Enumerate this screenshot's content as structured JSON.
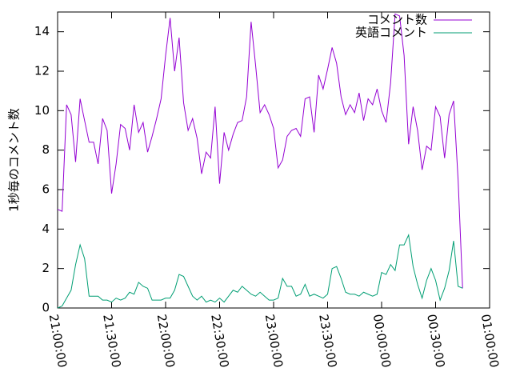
{
  "chart_data": {
    "type": "line",
    "ylabel": "1秒毎のコメント数",
    "x": [
      "21:00:00",
      "21:02:30",
      "21:05:00",
      "21:07:30",
      "21:10:00",
      "21:12:30",
      "21:15:00",
      "21:17:30",
      "21:20:00",
      "21:22:30",
      "21:25:00",
      "21:27:30",
      "21:30:00",
      "21:32:30",
      "21:35:00",
      "21:37:30",
      "21:40:00",
      "21:42:30",
      "21:45:00",
      "21:47:30",
      "21:50:00",
      "21:52:30",
      "21:55:00",
      "21:57:30",
      "22:00:00",
      "22:02:30",
      "22:05:00",
      "22:07:30",
      "22:10:00",
      "22:12:30",
      "22:15:00",
      "22:17:30",
      "22:20:00",
      "22:22:30",
      "22:25:00",
      "22:27:30",
      "22:30:00",
      "22:32:30",
      "22:35:00",
      "22:37:30",
      "22:40:00",
      "22:42:30",
      "22:45:00",
      "22:47:30",
      "22:50:00",
      "22:52:30",
      "22:55:00",
      "22:57:30",
      "23:00:00",
      "23:02:30",
      "23:05:00",
      "23:07:30",
      "23:10:00",
      "23:12:30",
      "23:15:00",
      "23:17:30",
      "23:20:00",
      "23:22:30",
      "23:25:00",
      "23:27:30",
      "23:30:00",
      "23:32:30",
      "23:35:00",
      "23:37:30",
      "23:40:00",
      "23:42:30",
      "23:45:00",
      "23:47:30",
      "23:50:00",
      "23:52:30",
      "23:55:00",
      "23:57:30",
      "00:00:00",
      "00:02:30",
      "00:05:00",
      "00:07:30",
      "00:10:00",
      "00:12:30",
      "00:15:00",
      "00:17:30",
      "00:20:00",
      "00:22:30",
      "00:25:00",
      "00:27:30",
      "00:30:00",
      "00:32:30",
      "00:35:00",
      "00:37:30",
      "00:40:00",
      "00:42:30",
      "00:45:00"
    ],
    "series": [
      {
        "name": "コメント数",
        "color": "#9400d3",
        "values": [
          5.0,
          4.9,
          10.3,
          9.8,
          7.4,
          10.6,
          9.5,
          8.4,
          8.4,
          7.3,
          9.6,
          9.0,
          5.8,
          7.3,
          9.3,
          9.1,
          8.0,
          10.3,
          8.9,
          9.4,
          7.9,
          8.7,
          9.6,
          10.6,
          12.8,
          14.7,
          12.0,
          13.7,
          10.4,
          9.0,
          9.6,
          8.6,
          6.8,
          7.9,
          7.6,
          10.2,
          6.3,
          8.9,
          8.0,
          8.8,
          9.4,
          9.5,
          10.7,
          14.5,
          12.3,
          9.9,
          10.3,
          9.8,
          9.1,
          7.1,
          7.5,
          8.7,
          9.0,
          9.1,
          8.7,
          10.6,
          10.7,
          8.9,
          11.8,
          11.1,
          12.1,
          13.2,
          12.4,
          10.7,
          9.8,
          10.3,
          9.9,
          10.9,
          9.5,
          10.6,
          10.3,
          11.1,
          10.0,
          9.4,
          11.4,
          14.9,
          14.8,
          12.8,
          8.3,
          10.2,
          9.0,
          7.0,
          8.2,
          8.0,
          10.2,
          9.7,
          7.6,
          9.8,
          10.5,
          6.5,
          1.0
        ]
      },
      {
        "name": "英語コメント",
        "color": "#009e73",
        "values": [
          0,
          0.1,
          0.5,
          0.9,
          2.2,
          3.2,
          2.5,
          0.6,
          0.6,
          0.6,
          0.4,
          0.4,
          0.3,
          0.5,
          0.4,
          0.5,
          0.8,
          0.7,
          1.3,
          1.1,
          1.0,
          0.4,
          0.4,
          0.4,
          0.5,
          0.5,
          0.9,
          1.7,
          1.6,
          1.1,
          0.6,
          0.4,
          0.6,
          0.3,
          0.4,
          0.3,
          0.5,
          0.3,
          0.6,
          0.9,
          0.8,
          1.1,
          0.9,
          0.7,
          0.6,
          0.8,
          0.6,
          0.4,
          0.4,
          0.5,
          1.5,
          1.1,
          1.1,
          0.6,
          0.7,
          1.2,
          0.6,
          0.7,
          0.6,
          0.5,
          0.7,
          2.0,
          2.1,
          1.5,
          0.8,
          0.7,
          0.7,
          0.6,
          0.8,
          0.7,
          0.6,
          0.7,
          1.8,
          1.7,
          2.2,
          1.9,
          3.2,
          3.2,
          3.7,
          2.1,
          1.2,
          0.5,
          1.4,
          2.0,
          1.4,
          0.4,
          1.0,
          1.9,
          3.4,
          1.1,
          1.0
        ]
      }
    ],
    "xlim": [
      "21:00:00",
      "01:00:00"
    ],
    "xticks": [
      "21:00:00",
      "21:30:00",
      "22:00:00",
      "22:30:00",
      "23:00:00",
      "23:30:00",
      "00:00:00",
      "00:30:00",
      "01:00:00"
    ],
    "ylim": [
      0,
      15
    ],
    "yticks": [
      0,
      2,
      4,
      6,
      8,
      10,
      12,
      14
    ],
    "legend": "top-right"
  }
}
